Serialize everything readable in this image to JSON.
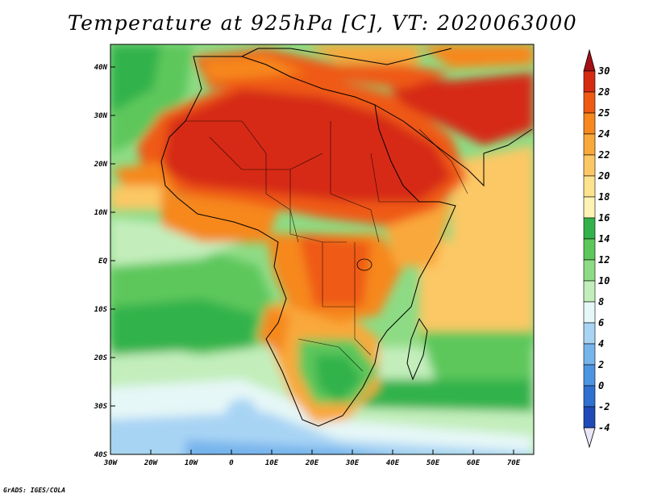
{
  "title": "Temperature at 925hPa [C], VT: 2020063000",
  "credit": "GrADS: IGES/COLA",
  "map": {
    "lon_ticks": [
      "30W",
      "20W",
      "10W",
      "0",
      "10E",
      "20E",
      "30E",
      "40E",
      "50E",
      "60E",
      "70E"
    ],
    "lat_ticks": [
      "40N",
      "30N",
      "20N",
      "10N",
      "EQ",
      "10S",
      "20S",
      "30S",
      "40S"
    ]
  },
  "colorbar": {
    "labels": [
      "30",
      "28",
      "25",
      "24",
      "22",
      "20",
      "18",
      "16",
      "14",
      "12",
      "10",
      "8",
      "6",
      "4",
      "2",
      "0",
      "-2",
      "-4"
    ],
    "colors": [
      "#a50f15",
      "#d62b12",
      "#ef5a12",
      "#f6881d",
      "#f9a83a",
      "#fbc865",
      "#fde38e",
      "#fdf3b3",
      "#33b24b",
      "#5dc75c",
      "#8edb85",
      "#c3eebb",
      "#e6f7f7",
      "#a8d4f4",
      "#76b4ec",
      "#4d94e1",
      "#2f70d0",
      "#1f4ab8",
      "#142a8a"
    ]
  }
}
